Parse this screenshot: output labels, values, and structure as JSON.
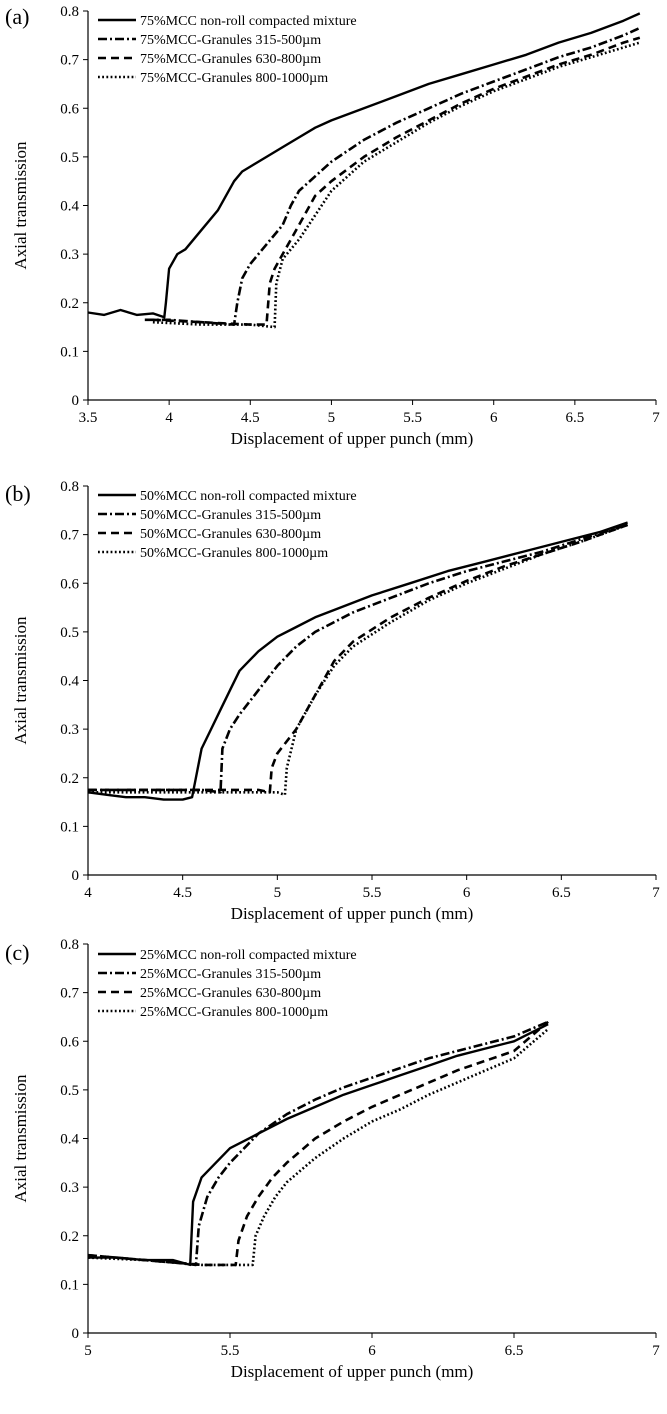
{
  "chart_data": [
    {
      "type": "line",
      "panel_label": "(a)",
      "xlabel": "Displacement of upper punch (mm)",
      "ylabel": "Axial transmission",
      "xlim": [
        3.5,
        7
      ],
      "ylim": [
        0,
        0.8
      ],
      "xticks": [
        "3.5",
        "4",
        "4.5",
        "5",
        "5.5",
        "6",
        "6.5",
        "7"
      ],
      "yticks": [
        "0",
        "0.1",
        "0.2",
        "0.3",
        "0.4",
        "0.5",
        "0.6",
        "0.7",
        "0.8"
      ],
      "grid": false,
      "legend_position": "top-left",
      "series": [
        {
          "name": "75%MCC non-roll compacted mixture",
          "style": "solid",
          "x": [
            3.5,
            3.6,
            3.7,
            3.8,
            3.9,
            3.97,
            3.98,
            4.0,
            4.05,
            4.1,
            4.2,
            4.3,
            4.4,
            4.45,
            4.5,
            4.6,
            4.7,
            4.8,
            4.9,
            5.0,
            5.2,
            5.4,
            5.6,
            5.8,
            6.0,
            6.2,
            6.4,
            6.6,
            6.8,
            6.9
          ],
          "y": [
            0.18,
            0.175,
            0.185,
            0.175,
            0.178,
            0.17,
            0.2,
            0.27,
            0.3,
            0.31,
            0.35,
            0.39,
            0.45,
            0.47,
            0.48,
            0.5,
            0.52,
            0.54,
            0.56,
            0.575,
            0.6,
            0.625,
            0.65,
            0.67,
            0.69,
            0.71,
            0.735,
            0.755,
            0.78,
            0.795
          ]
        },
        {
          "name": "75%MCC-Granules 315-500µm",
          "style": "dashdot",
          "x": [
            3.85,
            4.0,
            4.2,
            4.4,
            4.42,
            4.45,
            4.5,
            4.6,
            4.7,
            4.75,
            4.8,
            4.9,
            5.0,
            5.2,
            5.4,
            5.6,
            5.8,
            6.0,
            6.2,
            6.4,
            6.6,
            6.8,
            6.9
          ],
          "y": [
            0.165,
            0.165,
            0.16,
            0.155,
            0.2,
            0.25,
            0.28,
            0.32,
            0.36,
            0.4,
            0.43,
            0.46,
            0.49,
            0.535,
            0.57,
            0.6,
            0.63,
            0.655,
            0.68,
            0.705,
            0.725,
            0.75,
            0.765
          ]
        },
        {
          "name": "75%MCC-Granules 630-800µm",
          "style": "dashed",
          "x": [
            3.9,
            4.2,
            4.5,
            4.6,
            4.62,
            4.65,
            4.7,
            4.8,
            4.9,
            5.0,
            5.2,
            5.4,
            5.6,
            5.8,
            6.0,
            6.2,
            6.4,
            6.6,
            6.8,
            6.9
          ],
          "y": [
            0.165,
            0.16,
            0.155,
            0.155,
            0.24,
            0.27,
            0.3,
            0.36,
            0.42,
            0.45,
            0.5,
            0.54,
            0.575,
            0.61,
            0.64,
            0.665,
            0.69,
            0.71,
            0.735,
            0.745
          ]
        },
        {
          "name": "75%MCC-Granules 800-1000µm",
          "style": "dotted",
          "x": [
            3.9,
            4.2,
            4.5,
            4.65,
            4.66,
            4.7,
            4.8,
            4.9,
            5.0,
            5.2,
            5.4,
            5.6,
            5.8,
            6.0,
            6.2,
            6.4,
            6.6,
            6.8,
            6.9
          ],
          "y": [
            0.16,
            0.155,
            0.155,
            0.15,
            0.24,
            0.29,
            0.33,
            0.38,
            0.43,
            0.49,
            0.53,
            0.57,
            0.605,
            0.635,
            0.66,
            0.685,
            0.705,
            0.725,
            0.735
          ]
        }
      ]
    },
    {
      "type": "line",
      "panel_label": "(b)",
      "xlabel": "Displacement of upper punch (mm)",
      "ylabel": "Axial transmission",
      "xlim": [
        4,
        7
      ],
      "ylim": [
        0,
        0.8
      ],
      "xticks": [
        "4",
        "4.5",
        "5",
        "5.5",
        "6",
        "6.5",
        "7"
      ],
      "yticks": [
        "0",
        "0.1",
        "0.2",
        "0.3",
        "0.4",
        "0.5",
        "0.6",
        "0.7",
        "0.8"
      ],
      "grid": false,
      "legend_position": "top-left",
      "series": [
        {
          "name": "50%MCC non-roll compacted mixture",
          "style": "solid",
          "x": [
            4.0,
            4.1,
            4.2,
            4.3,
            4.4,
            4.5,
            4.55,
            4.57,
            4.6,
            4.65,
            4.7,
            4.75,
            4.8,
            4.85,
            4.9,
            5.0,
            5.1,
            5.2,
            5.3,
            5.5,
            5.7,
            5.9,
            6.1,
            6.3,
            6.5,
            6.7,
            6.85
          ],
          "y": [
            0.17,
            0.165,
            0.16,
            0.16,
            0.155,
            0.155,
            0.16,
            0.2,
            0.26,
            0.3,
            0.34,
            0.38,
            0.42,
            0.44,
            0.46,
            0.49,
            0.51,
            0.53,
            0.545,
            0.575,
            0.6,
            0.625,
            0.645,
            0.665,
            0.685,
            0.705,
            0.725
          ]
        },
        {
          "name": "50%MCC-Granules 315-500µm",
          "style": "dashdot",
          "x": [
            4.0,
            4.3,
            4.6,
            4.7,
            4.71,
            4.75,
            4.8,
            4.9,
            5.0,
            5.1,
            5.2,
            5.4,
            5.6,
            5.8,
            6.0,
            6.2,
            6.4,
            6.6,
            6.85
          ],
          "y": [
            0.175,
            0.175,
            0.175,
            0.17,
            0.26,
            0.3,
            0.33,
            0.38,
            0.43,
            0.47,
            0.5,
            0.54,
            0.57,
            0.6,
            0.625,
            0.645,
            0.665,
            0.69,
            0.72
          ]
        },
        {
          "name": "50%MCC-Granules 630-800µm",
          "style": "dashed",
          "x": [
            4.0,
            4.5,
            4.9,
            4.96,
            4.97,
            5.0,
            5.1,
            5.2,
            5.3,
            5.4,
            5.6,
            5.8,
            6.0,
            6.2,
            6.4,
            6.6,
            6.85
          ],
          "y": [
            0.175,
            0.175,
            0.175,
            0.17,
            0.22,
            0.25,
            0.3,
            0.37,
            0.44,
            0.48,
            0.53,
            0.57,
            0.605,
            0.635,
            0.66,
            0.685,
            0.72
          ]
        },
        {
          "name": "50%MCC-Granules 800-1000µm",
          "style": "dotted",
          "x": [
            4.0,
            4.5,
            5.0,
            5.04,
            5.05,
            5.1,
            5.2,
            5.3,
            5.4,
            5.6,
            5.8,
            6.0,
            6.2,
            6.4,
            6.6,
            6.85
          ],
          "y": [
            0.17,
            0.17,
            0.17,
            0.165,
            0.22,
            0.3,
            0.37,
            0.43,
            0.47,
            0.52,
            0.565,
            0.6,
            0.63,
            0.66,
            0.685,
            0.72
          ]
        }
      ]
    },
    {
      "type": "line",
      "panel_label": "(c)",
      "xlabel": "Displacement of upper punch (mm)",
      "ylabel": "Axial transmission",
      "xlim": [
        5,
        7
      ],
      "ylim": [
        0,
        0.8
      ],
      "xticks": [
        "5",
        "5.5",
        "6",
        "6.5",
        "7"
      ],
      "yticks": [
        "0",
        "0.1",
        "0.2",
        "0.3",
        "0.4",
        "0.5",
        "0.6",
        "0.7",
        "0.8"
      ],
      "grid": false,
      "legend_position": "top-left",
      "series": [
        {
          "name": "25%MCC non-roll compacted mixture",
          "style": "solid",
          "x": [
            5.0,
            5.1,
            5.2,
            5.3,
            5.36,
            5.37,
            5.4,
            5.45,
            5.5,
            5.55,
            5.6,
            5.7,
            5.8,
            5.9,
            6.0,
            6.1,
            6.2,
            6.3,
            6.4,
            6.5,
            6.62
          ],
          "y": [
            0.155,
            0.155,
            0.15,
            0.15,
            0.14,
            0.27,
            0.32,
            0.35,
            0.38,
            0.395,
            0.41,
            0.44,
            0.465,
            0.49,
            0.51,
            0.53,
            0.55,
            0.57,
            0.585,
            0.6,
            0.635
          ]
        },
        {
          "name": "25%MCC-Granules 315-500µm",
          "style": "dashdot",
          "x": [
            5.0,
            5.1,
            5.2,
            5.3,
            5.38,
            5.39,
            5.42,
            5.46,
            5.5,
            5.55,
            5.6,
            5.7,
            5.8,
            5.9,
            6.0,
            6.1,
            6.2,
            6.3,
            6.4,
            6.5,
            6.62
          ],
          "y": [
            0.16,
            0.155,
            0.15,
            0.145,
            0.14,
            0.22,
            0.28,
            0.32,
            0.35,
            0.38,
            0.41,
            0.45,
            0.48,
            0.505,
            0.525,
            0.545,
            0.565,
            0.58,
            0.595,
            0.61,
            0.64
          ]
        },
        {
          "name": "25%MCC-Granules 630-800µm",
          "style": "dashed",
          "x": [
            5.0,
            5.2,
            5.4,
            5.52,
            5.53,
            5.56,
            5.6,
            5.65,
            5.7,
            5.8,
            5.9,
            6.0,
            6.1,
            6.2,
            6.3,
            6.4,
            6.5,
            6.62
          ],
          "y": [
            0.16,
            0.15,
            0.14,
            0.14,
            0.19,
            0.24,
            0.28,
            0.32,
            0.35,
            0.4,
            0.435,
            0.465,
            0.49,
            0.515,
            0.54,
            0.56,
            0.58,
            0.64
          ]
        },
        {
          "name": "25%MCC-Granules 800-1000µm",
          "style": "dotted",
          "x": [
            5.0,
            5.2,
            5.4,
            5.58,
            5.59,
            5.62,
            5.66,
            5.7,
            5.8,
            5.9,
            6.0,
            6.1,
            6.2,
            6.3,
            6.4,
            6.5,
            6.62
          ],
          "y": [
            0.155,
            0.15,
            0.14,
            0.14,
            0.2,
            0.24,
            0.28,
            0.31,
            0.36,
            0.4,
            0.435,
            0.46,
            0.49,
            0.515,
            0.54,
            0.565,
            0.625
          ]
        }
      ]
    }
  ]
}
